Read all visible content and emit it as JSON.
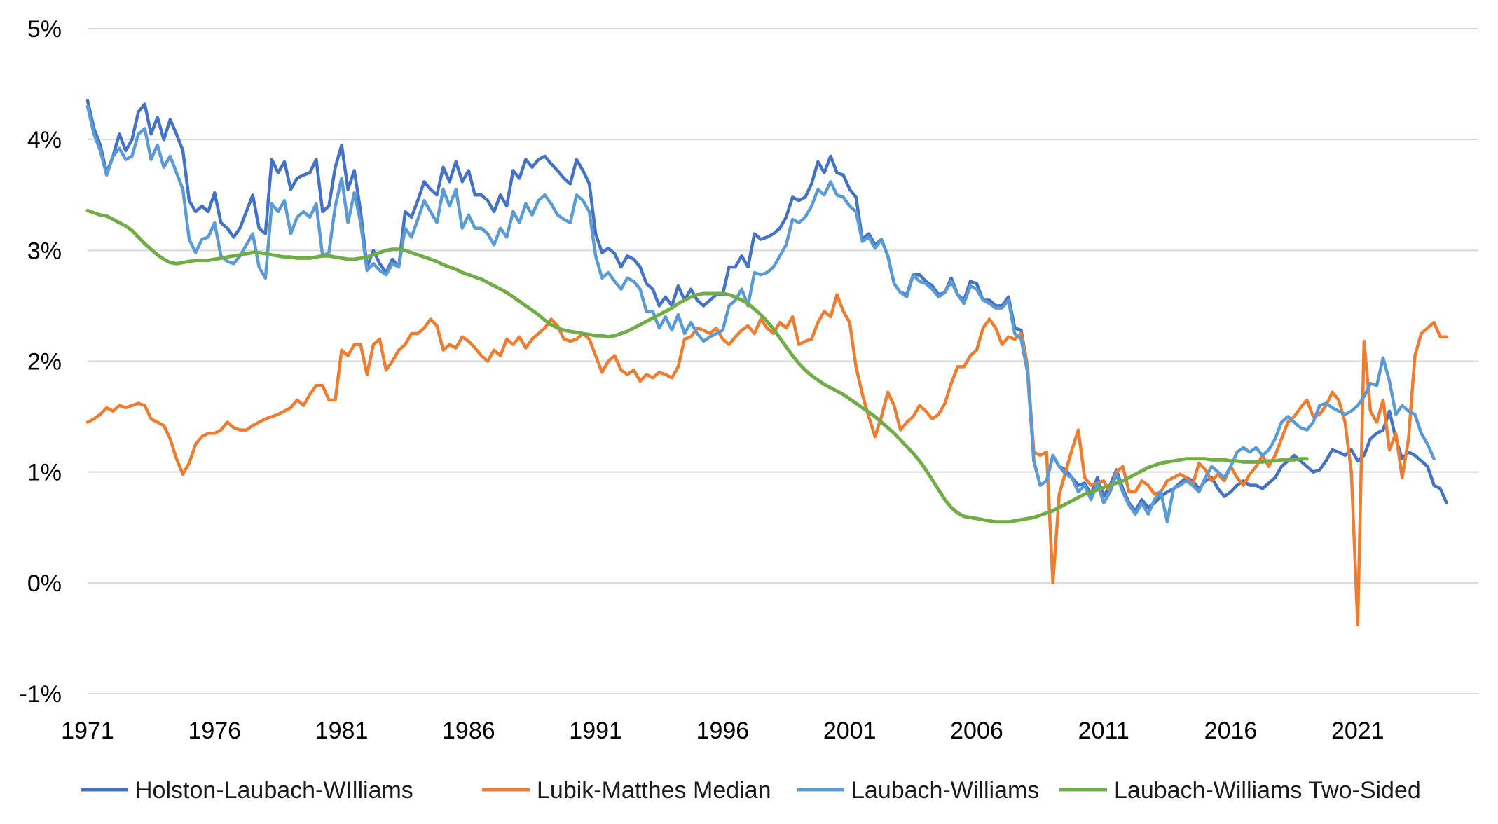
{
  "chart_data": {
    "type": "line",
    "title": "",
    "xlabel": "",
    "ylabel": "",
    "x_start": 1971.0,
    "x_step": 0.25,
    "xlim": [
      1971.0,
      2025.75
    ],
    "ylim": [
      -1,
      5
    ],
    "y_ticks": [
      5,
      4,
      3,
      2,
      1,
      0,
      -1
    ],
    "y_tick_labels": [
      "5%",
      "4%",
      "3%",
      "2%",
      "1%",
      "0%",
      "-1%"
    ],
    "x_ticks": [
      1971,
      1976,
      1981,
      1986,
      1991,
      1996,
      2001,
      2006,
      2011,
      2016,
      2021
    ],
    "x_tick_labels": [
      "1971",
      "1976",
      "1981",
      "1986",
      "1991",
      "1996",
      "2001",
      "2006",
      "2011",
      "2016",
      "2021"
    ],
    "grid": "horizontal",
    "legend_position": "bottom",
    "series": [
      {
        "name": "Holston-Laubach-WIlliams",
        "color": "#4472c4",
        "values": [
          4.35,
          4.1,
          3.95,
          3.7,
          3.85,
          4.05,
          3.9,
          4.0,
          4.25,
          4.32,
          4.05,
          4.2,
          4.0,
          4.18,
          4.05,
          3.9,
          3.45,
          3.35,
          3.4,
          3.35,
          3.52,
          3.25,
          3.2,
          3.12,
          3.2,
          3.35,
          3.5,
          3.2,
          3.15,
          3.82,
          3.7,
          3.8,
          3.55,
          3.65,
          3.68,
          3.7,
          3.82,
          3.35,
          3.4,
          3.75,
          3.95,
          3.55,
          3.72,
          3.35,
          2.85,
          3.0,
          2.88,
          2.8,
          2.92,
          2.85,
          3.35,
          3.3,
          3.45,
          3.62,
          3.55,
          3.5,
          3.75,
          3.62,
          3.8,
          3.62,
          3.72,
          3.5,
          3.5,
          3.45,
          3.35,
          3.5,
          3.4,
          3.72,
          3.65,
          3.82,
          3.75,
          3.82,
          3.85,
          3.78,
          3.72,
          3.65,
          3.6,
          3.82,
          3.72,
          3.6,
          3.15,
          2.98,
          3.02,
          2.97,
          2.85,
          2.95,
          2.92,
          2.85,
          2.7,
          2.65,
          2.5,
          2.58,
          2.5,
          2.68,
          2.55,
          2.65,
          2.55,
          2.5,
          2.55,
          2.6,
          2.6,
          2.85,
          2.85,
          2.95,
          2.85,
          3.15,
          3.1,
          3.12,
          3.15,
          3.2,
          3.3,
          3.48,
          3.45,
          3.48,
          3.6,
          3.8,
          3.7,
          3.85,
          3.7,
          3.68,
          3.55,
          3.48,
          3.1,
          3.15,
          3.05,
          3.1,
          2.95,
          2.7,
          2.62,
          2.6,
          2.78,
          2.78,
          2.72,
          2.68,
          2.6,
          2.62,
          2.75,
          2.6,
          2.55,
          2.72,
          2.7,
          2.55,
          2.55,
          2.5,
          2.5,
          2.58,
          2.3,
          2.28,
          1.95,
          1.1,
          0.88,
          0.92,
          1.15,
          1.05,
          1.02,
          0.95,
          0.88,
          0.9,
          0.8,
          0.95,
          0.78,
          0.88,
          1.02,
          0.85,
          0.72,
          0.65,
          0.75,
          0.68,
          0.72,
          0.78,
          0.82,
          0.85,
          0.9,
          0.95,
          0.92,
          0.85,
          0.92,
          0.95,
          0.85,
          0.78,
          0.82,
          0.88,
          0.92,
          0.88,
          0.88,
          0.85,
          0.9,
          0.95,
          1.05,
          1.1,
          1.15,
          1.1,
          1.05,
          1.0,
          1.02,
          1.1,
          1.2,
          1.18,
          1.15,
          1.2,
          1.1,
          1.15,
          1.3,
          1.35,
          1.38,
          1.55,
          1.3,
          1.12,
          1.18,
          1.15,
          1.1,
          1.05,
          0.88,
          0.85,
          0.72
        ]
      },
      {
        "name": "Lubik-Matthes Median",
        "color": "#ed7d31",
        "values": [
          1.45,
          1.48,
          1.52,
          1.58,
          1.55,
          1.6,
          1.58,
          1.6,
          1.62,
          1.6,
          1.48,
          1.45,
          1.42,
          1.3,
          1.12,
          0.98,
          1.08,
          1.25,
          1.32,
          1.35,
          1.35,
          1.38,
          1.45,
          1.4,
          1.38,
          1.38,
          1.42,
          1.45,
          1.48,
          1.5,
          1.52,
          1.55,
          1.58,
          1.65,
          1.6,
          1.7,
          1.78,
          1.78,
          1.65,
          1.65,
          2.1,
          2.05,
          2.15,
          2.15,
          1.88,
          2.15,
          2.2,
          1.92,
          2.0,
          2.1,
          2.15,
          2.25,
          2.25,
          2.3,
          2.38,
          2.32,
          2.1,
          2.15,
          2.12,
          2.22,
          2.18,
          2.12,
          2.05,
          2.0,
          2.1,
          2.05,
          2.2,
          2.15,
          2.22,
          2.12,
          2.2,
          2.25,
          2.3,
          2.38,
          2.32,
          2.2,
          2.18,
          2.2,
          2.25,
          2.2,
          2.05,
          1.9,
          2.0,
          2.05,
          1.92,
          1.88,
          1.92,
          1.82,
          1.88,
          1.85,
          1.9,
          1.88,
          1.85,
          1.95,
          2.2,
          2.22,
          2.3,
          2.28,
          2.25,
          2.3,
          2.2,
          2.15,
          2.22,
          2.28,
          2.32,
          2.25,
          2.38,
          2.3,
          2.25,
          2.35,
          2.3,
          2.4,
          2.15,
          2.18,
          2.2,
          2.35,
          2.45,
          2.4,
          2.6,
          2.45,
          2.35,
          1.95,
          1.7,
          1.5,
          1.32,
          1.5,
          1.72,
          1.6,
          1.38,
          1.45,
          1.5,
          1.6,
          1.55,
          1.48,
          1.52,
          1.62,
          1.8,
          1.95,
          1.95,
          2.05,
          2.1,
          2.3,
          2.38,
          2.3,
          2.15,
          2.22,
          2.2,
          2.25,
          1.95,
          1.18,
          1.15,
          1.18,
          0.0,
          0.8,
          1.0,
          1.2,
          1.38,
          0.95,
          0.88,
          0.9,
          0.92,
          0.82,
          1.0,
          1.05,
          0.82,
          0.82,
          0.92,
          0.88,
          0.8,
          0.82,
          0.92,
          0.95,
          0.98,
          0.95,
          0.88,
          1.08,
          1.02,
          0.92,
          0.98,
          0.92,
          1.05,
          0.95,
          0.88,
          0.98,
          1.05,
          1.15,
          1.05,
          1.15,
          1.3,
          1.45,
          1.5,
          1.58,
          1.65,
          1.5,
          1.52,
          1.6,
          1.72,
          1.65,
          1.45,
          1.0,
          -0.38,
          2.18,
          1.55,
          1.45,
          1.65,
          1.2,
          1.35,
          0.95,
          1.3,
          2.05,
          2.25,
          2.3,
          2.35,
          2.22,
          2.22
        ]
      },
      {
        "name": "Laubach-Williams",
        "color": "#5b9bd5",
        "values": [
          4.3,
          4.05,
          3.9,
          3.68,
          3.85,
          3.92,
          3.82,
          3.85,
          4.05,
          4.1,
          3.82,
          3.95,
          3.75,
          3.85,
          3.7,
          3.55,
          3.1,
          2.98,
          3.1,
          3.12,
          3.25,
          2.95,
          2.9,
          2.88,
          2.95,
          3.05,
          3.15,
          2.85,
          2.75,
          3.42,
          3.35,
          3.45,
          3.15,
          3.3,
          3.35,
          3.3,
          3.42,
          2.95,
          2.98,
          3.4,
          3.65,
          3.25,
          3.52,
          3.25,
          2.82,
          2.88,
          2.82,
          2.78,
          2.88,
          2.85,
          3.2,
          3.12,
          3.28,
          3.45,
          3.35,
          3.25,
          3.55,
          3.4,
          3.55,
          3.2,
          3.32,
          3.2,
          3.2,
          3.15,
          3.05,
          3.2,
          3.12,
          3.35,
          3.25,
          3.42,
          3.32,
          3.45,
          3.5,
          3.42,
          3.32,
          3.28,
          3.25,
          3.5,
          3.45,
          3.35,
          2.95,
          2.75,
          2.8,
          2.72,
          2.65,
          2.75,
          2.72,
          2.65,
          2.45,
          2.45,
          2.3,
          2.4,
          2.28,
          2.42,
          2.25,
          2.35,
          2.25,
          2.18,
          2.22,
          2.25,
          2.28,
          2.5,
          2.55,
          2.65,
          2.5,
          2.8,
          2.78,
          2.8,
          2.85,
          2.95,
          3.05,
          3.28,
          3.25,
          3.3,
          3.4,
          3.55,
          3.5,
          3.62,
          3.5,
          3.48,
          3.4,
          3.35,
          3.08,
          3.12,
          3.02,
          3.1,
          2.95,
          2.7,
          2.62,
          2.58,
          2.78,
          2.72,
          2.7,
          2.65,
          2.58,
          2.62,
          2.72,
          2.6,
          2.52,
          2.68,
          2.65,
          2.55,
          2.52,
          2.48,
          2.48,
          2.55,
          2.25,
          2.2,
          1.9,
          1.1,
          0.88,
          0.92,
          1.15,
          1.05,
          0.98,
          0.95,
          0.82,
          0.88,
          0.75,
          0.9,
          0.72,
          0.82,
          0.98,
          0.82,
          0.7,
          0.62,
          0.72,
          0.62,
          0.75,
          0.82,
          0.55,
          0.85,
          0.88,
          0.92,
          0.88,
          0.82,
          0.95,
          1.05,
          1.0,
          0.95,
          1.05,
          1.18,
          1.22,
          1.18,
          1.22,
          1.15,
          1.2,
          1.3,
          1.45,
          1.5,
          1.45,
          1.4,
          1.38,
          1.45,
          1.6,
          1.62,
          1.58,
          1.55,
          1.52,
          1.55,
          1.6,
          1.68,
          1.8,
          1.78,
          2.03,
          1.82,
          1.52,
          1.6,
          1.55,
          1.52,
          1.35,
          1.25,
          1.12
        ]
      },
      {
        "name": "Laubach-Williams Two-Sided",
        "color": "#70ad47",
        "values": [
          3.36,
          3.34,
          3.32,
          3.31,
          3.28,
          3.25,
          3.22,
          3.18,
          3.12,
          3.06,
          3.01,
          2.96,
          2.92,
          2.89,
          2.88,
          2.89,
          2.9,
          2.91,
          2.91,
          2.91,
          2.92,
          2.93,
          2.94,
          2.95,
          2.96,
          2.97,
          2.98,
          2.98,
          2.97,
          2.96,
          2.95,
          2.94,
          2.94,
          2.93,
          2.93,
          2.93,
          2.94,
          2.95,
          2.95,
          2.94,
          2.93,
          2.92,
          2.92,
          2.93,
          2.94,
          2.96,
          2.98,
          3.0,
          3.01,
          3.01,
          3.0,
          2.98,
          2.96,
          2.94,
          2.92,
          2.9,
          2.87,
          2.85,
          2.83,
          2.8,
          2.78,
          2.76,
          2.74,
          2.71,
          2.68,
          2.65,
          2.62,
          2.58,
          2.54,
          2.5,
          2.46,
          2.42,
          2.37,
          2.33,
          2.3,
          2.28,
          2.27,
          2.26,
          2.25,
          2.24,
          2.23,
          2.23,
          2.22,
          2.23,
          2.25,
          2.27,
          2.3,
          2.33,
          2.36,
          2.39,
          2.42,
          2.45,
          2.48,
          2.52,
          2.55,
          2.58,
          2.6,
          2.61,
          2.61,
          2.61,
          2.61,
          2.6,
          2.58,
          2.55,
          2.52,
          2.47,
          2.42,
          2.36,
          2.29,
          2.21,
          2.13,
          2.05,
          1.98,
          1.92,
          1.87,
          1.83,
          1.79,
          1.76,
          1.73,
          1.7,
          1.66,
          1.62,
          1.58,
          1.54,
          1.5,
          1.45,
          1.4,
          1.35,
          1.29,
          1.23,
          1.17,
          1.1,
          1.02,
          0.93,
          0.84,
          0.75,
          0.68,
          0.63,
          0.6,
          0.59,
          0.58,
          0.57,
          0.56,
          0.55,
          0.55,
          0.55,
          0.56,
          0.57,
          0.58,
          0.59,
          0.61,
          0.63,
          0.65,
          0.68,
          0.71,
          0.74,
          0.77,
          0.8,
          0.82,
          0.84,
          0.86,
          0.88,
          0.9,
          0.92,
          0.95,
          0.98,
          1.01,
          1.04,
          1.06,
          1.08,
          1.09,
          1.1,
          1.11,
          1.12,
          1.12,
          1.12,
          1.12,
          1.11,
          1.11,
          1.11,
          1.1,
          1.1,
          1.09,
          1.09,
          1.09,
          1.09,
          1.1,
          1.1,
          1.11,
          1.11,
          1.11,
          1.12,
          1.12
        ]
      }
    ]
  }
}
